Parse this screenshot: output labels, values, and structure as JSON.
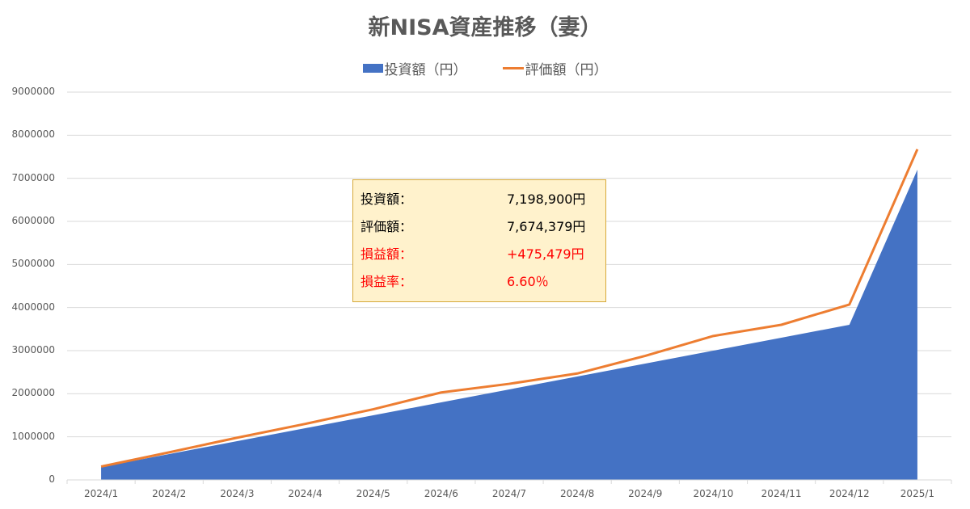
{
  "chart_data": {
    "type": "area+line",
    "title": "新NISA資産推移（妻）",
    "xlabel": "",
    "ylabel": "",
    "ylim": [
      0,
      9000000
    ],
    "yticks": [
      "0",
      "1000000",
      "2000000",
      "3000000",
      "4000000",
      "5000000",
      "6000000",
      "7000000",
      "8000000",
      "9000000"
    ],
    "grid": true,
    "legend_position": "top",
    "categories": [
      "2024/1",
      "2024/2",
      "2024/3",
      "2024/4",
      "2024/5",
      "2024/6",
      "2024/7",
      "2024/8",
      "2024/9",
      "2024/10",
      "2024/11",
      "2024/12",
      "2025/1"
    ],
    "series": [
      {
        "name": "投資額（円）",
        "type": "area",
        "color": "#4472C4",
        "values": [
          300000,
          600000,
          900000,
          1200000,
          1500000,
          1800000,
          2100000,
          2400000,
          2700000,
          3000000,
          3300000,
          3600000,
          7198900
        ]
      },
      {
        "name": "評価額（円）",
        "type": "line",
        "color": "#ED7D31",
        "values": [
          310000,
          640000,
          980000,
          1300000,
          1640000,
          2030000,
          2230000,
          2470000,
          2880000,
          3340000,
          3600000,
          4070000,
          7674379
        ]
      }
    ],
    "annotation": {
      "rows": [
        {
          "label": "投資額：",
          "value": "7,198,900円",
          "color": "#000000"
        },
        {
          "label": "評価額：",
          "value": "7,674,379円",
          "color": "#000000"
        },
        {
          "label": "損益額：",
          "value": "+475,479円",
          "color": "#FF0000"
        },
        {
          "label": "損益率：",
          "value": "6.60％",
          "color": "#FF0000"
        }
      ]
    }
  }
}
